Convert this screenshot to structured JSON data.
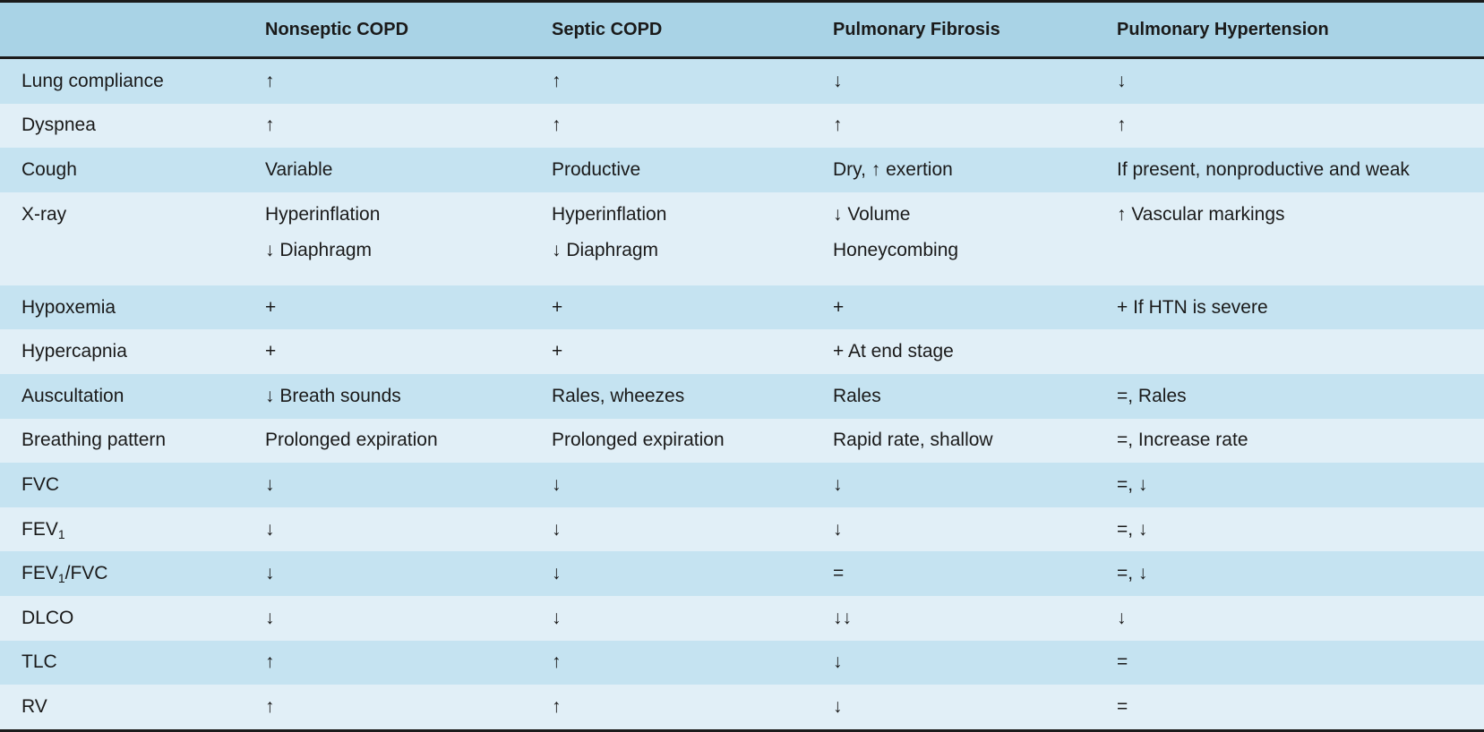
{
  "table": {
    "headers": [
      "",
      "Nonseptic COPD",
      "Septic COPD",
      "Pulmonary Fibrosis",
      "Pulmonary Hypertension"
    ],
    "rows": [
      {
        "label": "Lung compliance",
        "cells": [
          "↑",
          "↑",
          "↓",
          "↓"
        ]
      },
      {
        "label": "Dyspnea",
        "cells": [
          "↑",
          "↑",
          "↑",
          "↑"
        ]
      },
      {
        "label": "Cough",
        "cells": [
          "Variable",
          "Productive",
          "Dry, ↑ exertion",
          "If present, nonproductive and weak"
        ]
      },
      {
        "label": "X-ray",
        "cells": [
          [
            "Hyperinflation",
            "↓ Diaphragm"
          ],
          [
            "Hyperinflation",
            "↓ Diaphragm"
          ],
          [
            "↓ Volume",
            "Honeycombing"
          ],
          [
            "↑ Vascular markings",
            ""
          ]
        ]
      },
      {
        "label": "Hypoxemia",
        "cells": [
          "+",
          "+",
          "+",
          "+ If HTN is severe"
        ]
      },
      {
        "label": "Hypercapnia",
        "cells": [
          "+",
          "+",
          "+ At end stage",
          ""
        ]
      },
      {
        "label": "Auscultation",
        "cells": [
          "↓ Breath sounds",
          "Rales, wheezes",
          "Rales",
          "=, Rales"
        ]
      },
      {
        "label": "Breathing pattern",
        "cells": [
          "Prolonged expiration",
          "Prolonged expiration",
          "Rapid rate, shallow",
          "=, Increase rate"
        ]
      },
      {
        "label": "FVC",
        "cells": [
          "↓",
          "↓",
          "↓",
          "=, ↓"
        ]
      },
      {
        "label": "FEV",
        "label_sub": "1",
        "cells": [
          "↓",
          "↓",
          "↓",
          "=, ↓"
        ]
      },
      {
        "label": "FEV",
        "label_sub": "1",
        "label_suffix": "/FVC",
        "cells": [
          "↓",
          "↓",
          "=",
          "=, ↓"
        ]
      },
      {
        "label": "DLCO",
        "cells": [
          "↓",
          "↓",
          "↓↓",
          "↓"
        ]
      },
      {
        "label": "TLC",
        "cells": [
          "↑",
          "↑",
          "↓",
          "="
        ]
      },
      {
        "label": "RV",
        "cells": [
          "↑",
          "↑",
          "↓",
          "="
        ]
      }
    ]
  },
  "colors": {
    "header_bg": "#a9d3e6",
    "row_dark": "#c5e3f1",
    "row_light": "#e1eff7",
    "rule": "#1b1b1b"
  }
}
